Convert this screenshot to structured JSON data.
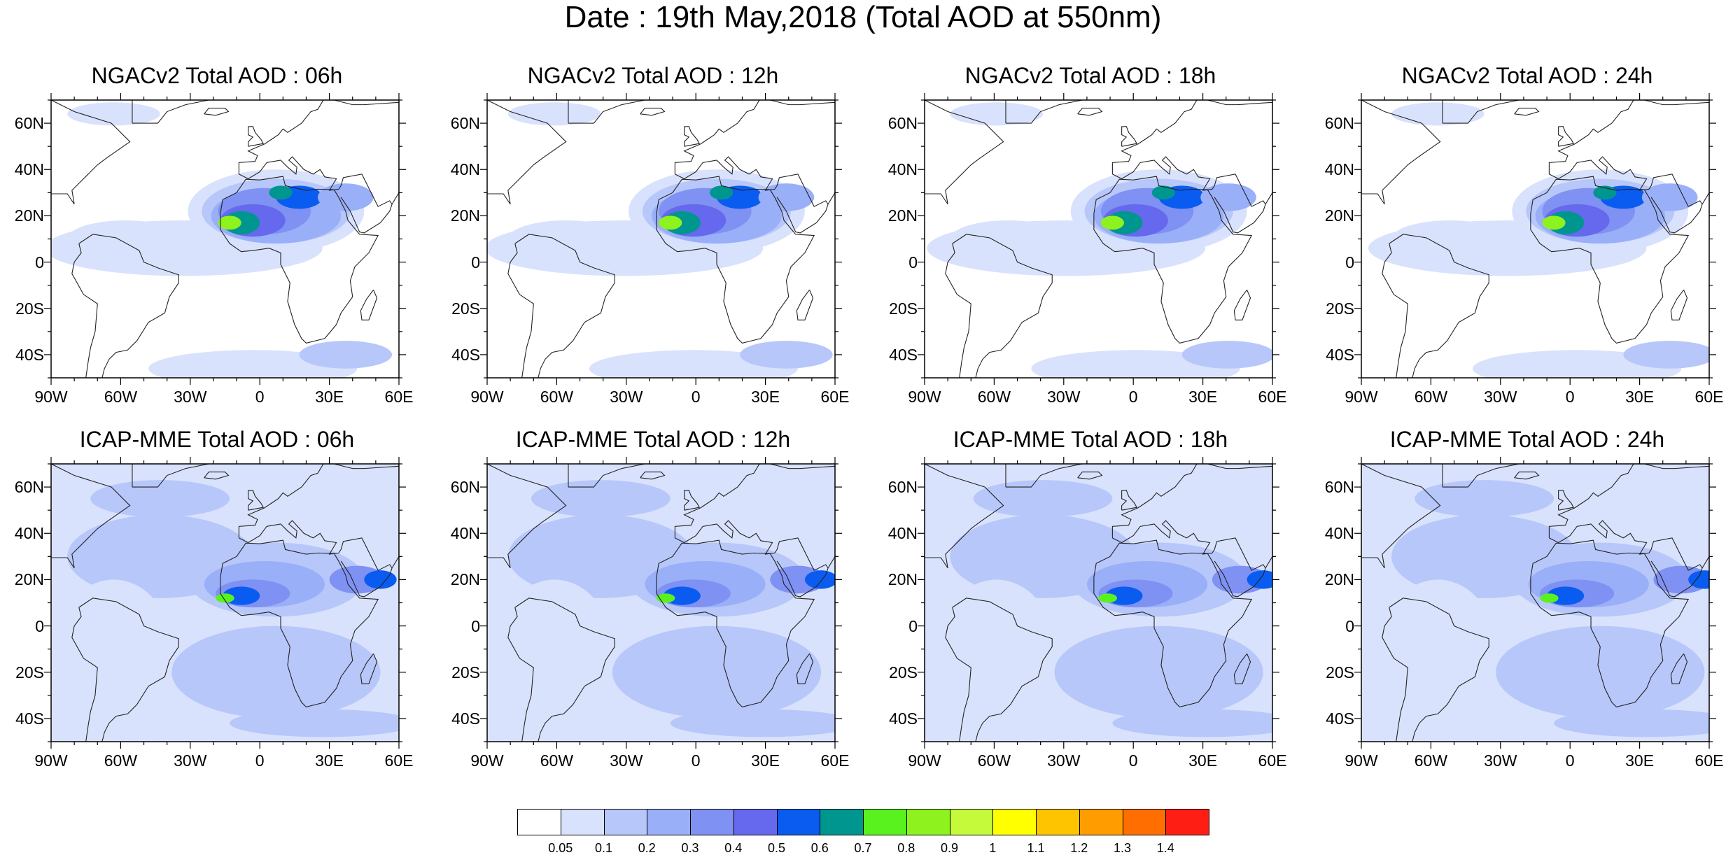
{
  "title": "Date : 19th May,2018 (Total AOD at 550nm)",
  "panels": [
    {
      "title": "NGACv2 Total AOD : 06h",
      "model": "NGAC",
      "hour": "06h"
    },
    {
      "title": "NGACv2 Total AOD : 12h",
      "model": "NGAC",
      "hour": "12h"
    },
    {
      "title": "NGACv2 Total AOD : 18h",
      "model": "NGAC",
      "hour": "18h"
    },
    {
      "title": "NGACv2 Total AOD : 24h",
      "model": "NGAC",
      "hour": "24h"
    },
    {
      "title": "ICAP-MME Total AOD : 06h",
      "model": "ICAP",
      "hour": "06h"
    },
    {
      "title": "ICAP-MME Total AOD : 12h",
      "model": "ICAP",
      "hour": "12h"
    },
    {
      "title": "ICAP-MME Total AOD : 18h",
      "model": "ICAP",
      "hour": "18h"
    },
    {
      "title": "ICAP-MME Total AOD : 24h",
      "model": "ICAP",
      "hour": "24h"
    }
  ],
  "lat_ticks": [
    "60N",
    "40N",
    "20N",
    "0",
    "20S",
    "40S"
  ],
  "lon_ticks": [
    "90W",
    "60W",
    "30W",
    "0",
    "30E",
    "60E"
  ],
  "colorbar": {
    "colors": [
      "#ffffff",
      "#d9e2fc",
      "#b8c7fa",
      "#99aff8",
      "#7f91f2",
      "#6668ee",
      "#0a5cf0",
      "#009690",
      "#5af21e",
      "#8ef21e",
      "#c4fa3a",
      "#ffff00",
      "#ffc400",
      "#ff9c00",
      "#ff6e00",
      "#ff1e14"
    ],
    "labels": [
      "0.05",
      "0.1",
      "0.2",
      "0.3",
      "0.4",
      "0.5",
      "0.6",
      "0.7",
      "0.8",
      "0.9",
      "1",
      "1.1",
      "1.2",
      "1.3",
      "1.4"
    ]
  }
}
